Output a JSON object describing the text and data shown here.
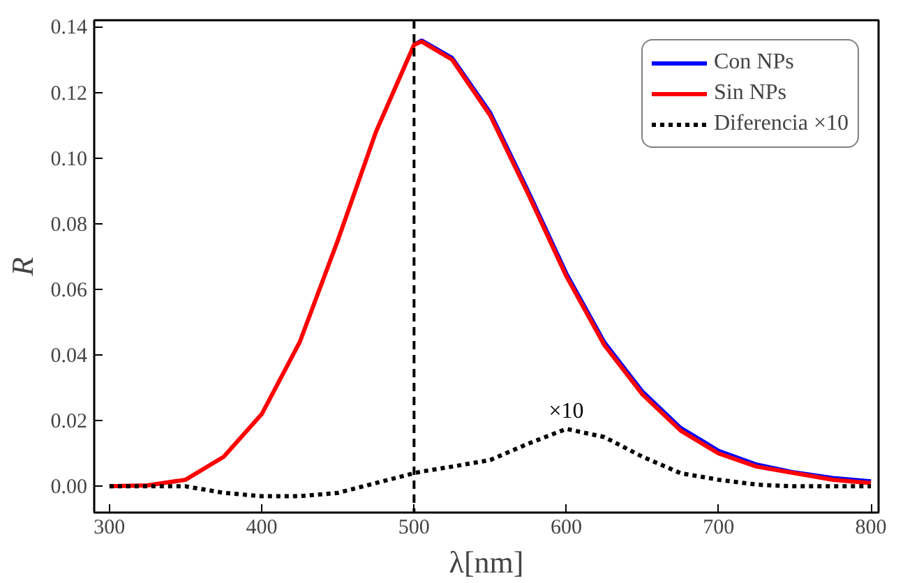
{
  "chart_data": {
    "type": "line",
    "xlabel": "λ[nm]",
    "ylabel": "R",
    "x": [
      300,
      325,
      350,
      375,
      400,
      425,
      450,
      475,
      500,
      505,
      525,
      550,
      575,
      600,
      625,
      650,
      675,
      700,
      725,
      750,
      775,
      800
    ],
    "series": [
      {
        "name": "Con NPs",
        "color": "#0000ff",
        "values": [
          null,
          null,
          null,
          null,
          null,
          null,
          null,
          null,
          0.1345,
          0.1358,
          0.1305,
          0.1138,
          0.0898,
          0.0648,
          0.0438,
          0.0288,
          0.0178,
          0.0108,
          0.0066,
          0.0042,
          0.0025,
          0.0015
        ]
      },
      {
        "name": "Sin NPs",
        "color": "#ff0000",
        "values": [
          0,
          0.0003,
          0.002,
          0.009,
          0.022,
          0.044,
          0.075,
          0.108,
          0.1345,
          0.1355,
          0.13,
          0.113,
          0.089,
          0.064,
          0.043,
          0.028,
          0.017,
          0.01,
          0.006,
          0.004,
          0.002,
          0.001
        ]
      },
      {
        "name": "Diferencia ×10",
        "color": "#000000",
        "line_style": "dotted",
        "values": [
          0,
          0,
          0,
          -0.002,
          -0.003,
          -0.003,
          -0.002,
          0.001,
          0.004,
          0.0045,
          0.006,
          0.008,
          0.013,
          0.0175,
          0.015,
          0.009,
          0.004,
          0.002,
          0.0005,
          0,
          0,
          0
        ]
      }
    ],
    "xlim": [
      290,
      805
    ],
    "ylim": [
      -0.008,
      0.142
    ],
    "xticks": [
      300,
      400,
      500,
      600,
      700,
      800
    ],
    "yticks": [
      {
        "value": 0,
        "label": "0.00"
      },
      {
        "value": 0.02,
        "label": "0.02"
      },
      {
        "value": 0.04,
        "label": "0.04"
      },
      {
        "value": 0.06,
        "label": "0.06"
      },
      {
        "value": 0.08,
        "label": "0.08"
      },
      {
        "value": 0.1,
        "label": "0.10"
      },
      {
        "value": 0.12,
        "label": "0.12"
      },
      {
        "value": 0.14,
        "label": "0.14"
      }
    ],
    "ref_lines": [
      {
        "axis": "x",
        "value": 500,
        "color": "#000000",
        "line_style": "dashed"
      }
    ],
    "annotations": [
      "×10"
    ],
    "legend": "top right",
    "grid": false,
    "marker": "none",
    "line_style": "solid"
  }
}
